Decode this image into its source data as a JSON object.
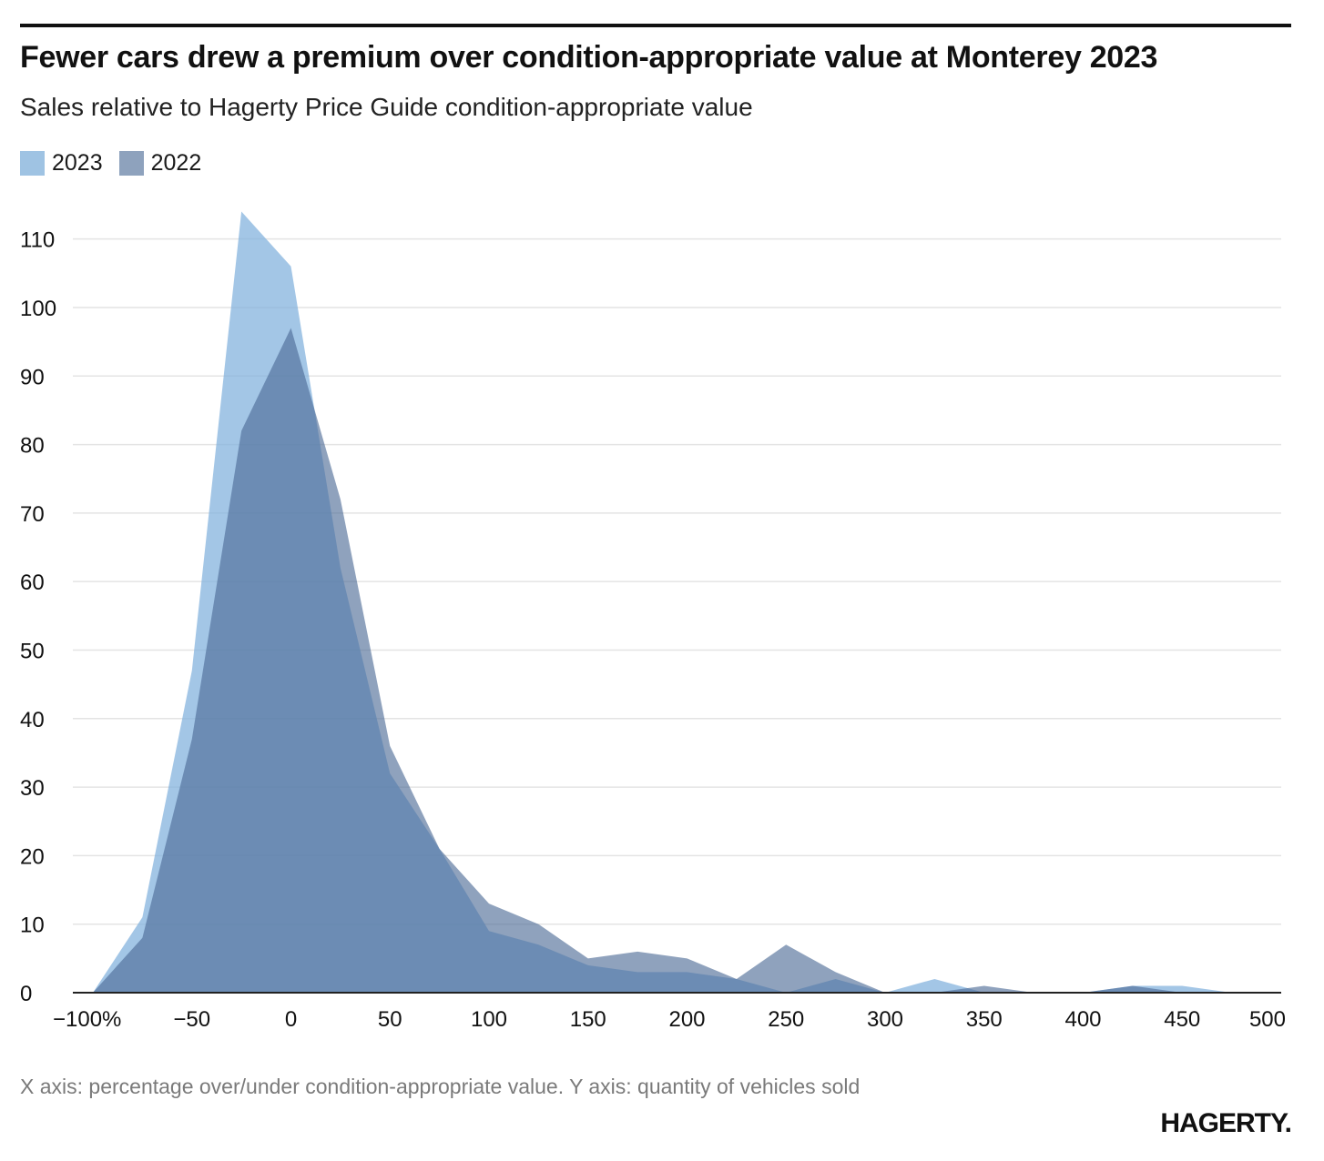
{
  "header": {
    "title": "Fewer cars drew a premium over condition-appropriate value at Monterey 2023",
    "subtitle": "Sales relative to Hagerty Price Guide condition-appropriate value"
  },
  "legend": [
    {
      "label": "2023",
      "color": "#9fc3e3"
    },
    {
      "label": "2022",
      "color": "#8ea2bd"
    }
  ],
  "footer": {
    "note": "X axis: percentage over/under condition-appropriate value. Y axis: quantity of vehicles sold",
    "brand": "HAGERTY."
  },
  "chart_data": {
    "type": "area",
    "x": [
      -100,
      -75,
      -50,
      -25,
      0,
      25,
      50,
      75,
      100,
      125,
      150,
      175,
      200,
      225,
      250,
      275,
      300,
      325,
      350,
      375,
      400,
      425,
      450,
      475,
      500
    ],
    "series": [
      {
        "name": "2023",
        "color": "#7fb0dc",
        "values": [
          0,
          11,
          47,
          114,
          106,
          62,
          32,
          21,
          9,
          7,
          4,
          3,
          3,
          2,
          0,
          2,
          0,
          2,
          0,
          0,
          0,
          1,
          1,
          0,
          0
        ]
      },
      {
        "name": "2022",
        "color": "#4a6994",
        "values": [
          0,
          8,
          37,
          82,
          97,
          72,
          36,
          21,
          13,
          10,
          5,
          6,
          5,
          2,
          7,
          3,
          0,
          0,
          1,
          0,
          0,
          1,
          0,
          0,
          0
        ]
      }
    ],
    "xlim": [
      -100,
      500
    ],
    "ylim": [
      0,
      115
    ],
    "x_ticks": [
      -100,
      -50,
      0,
      50,
      100,
      150,
      200,
      250,
      300,
      350,
      400,
      450,
      500
    ],
    "x_tick_labels": [
      "−100%",
      "−50",
      "0",
      "50",
      "100",
      "150",
      "200",
      "250",
      "300",
      "350",
      "400",
      "450",
      "500"
    ],
    "y_ticks": [
      0,
      10,
      20,
      30,
      40,
      50,
      60,
      70,
      80,
      90,
      100,
      110
    ],
    "y_tick_labels": [
      "0",
      "10",
      "20",
      "30",
      "40",
      "50",
      "60",
      "70",
      "80",
      "90",
      "100",
      "110"
    ],
    "grid": true,
    "legend_position": "top-left"
  }
}
